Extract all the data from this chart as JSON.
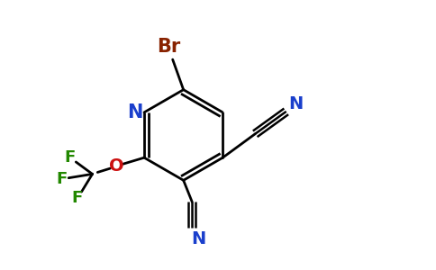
{
  "background_color": "#ffffff",
  "bond_color": "#000000",
  "bond_lw": 2.0,
  "atom_colors": {
    "N": "#1a3fcc",
    "O": "#cc1111",
    "Br": "#882200",
    "F": "#228800"
  },
  "font_size": 14,
  "figsize": [
    4.84,
    3.0
  ],
  "dpi": 100
}
